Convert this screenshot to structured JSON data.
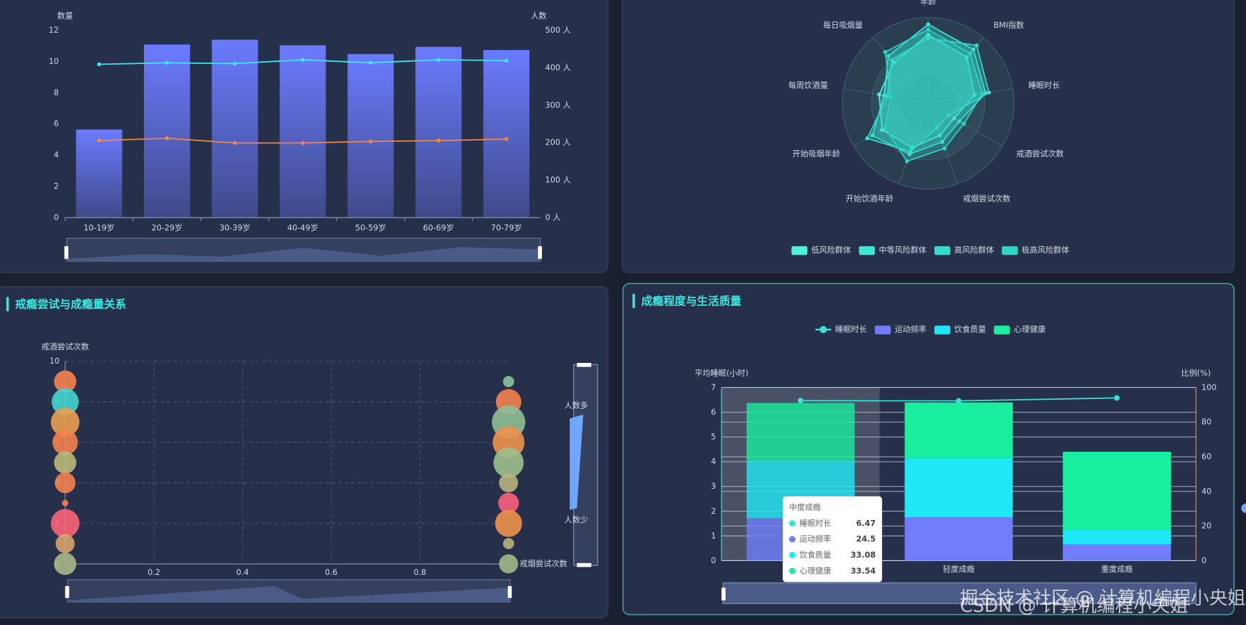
{
  "chart_data": [
    {
      "type": "bar",
      "y_label": "数量",
      "y2_label": "人数",
      "categories": [
        "10-19岁",
        "20-29岁",
        "30-39岁",
        "40-49岁",
        "50-59岁",
        "60-69岁",
        "70-79岁"
      ],
      "values": [
        5.64,
        11.08,
        11.39,
        11.03,
        10.47,
        10.93,
        10.73
      ],
      "color": "#6b7bff",
      "series": [
        {
          "color": "#38e8f0",
          "axis": "y2",
          "values": [
            409,
            413,
            411,
            421,
            413,
            421,
            419
          ]
        },
        {
          "color": "#f08a3c",
          "values": [
            4.93,
            5.08,
            4.78,
            4.78,
            4.88,
            4.93,
            5.03
          ]
        }
      ],
      "ylim": [
        0,
        12
      ],
      "yticks": [
        0,
        2,
        4,
        6,
        8,
        10,
        12
      ],
      "y2lim": [
        0,
        500
      ],
      "y2ticks": [
        {
          "value": 0,
          "label": "0 人"
        },
        {
          "value": 100,
          "label": "100 人"
        },
        {
          "value": 200,
          "label": "200 人"
        },
        {
          "value": 300,
          "label": "300 人"
        },
        {
          "value": 400,
          "label": "400 人"
        },
        {
          "value": 500,
          "label": "500 人"
        }
      ],
      "grid": false
    },
    {
      "type": "radar",
      "indicators": [
        "年龄",
        "BMI指数",
        "睡眠时长",
        "戒酒尝试次数",
        "戒烟尝试次数",
        "开始饮酒年龄",
        "开始吸烟年龄",
        "每周饮酒量",
        "每日吸烟量"
      ],
      "rlim": [
        0,
        100
      ],
      "series": [
        {
          "name": "低风险群体",
          "color": "#4ff0e0",
          "values": [
            80,
            70,
            55,
            35,
            40,
            55,
            62,
            58,
            62
          ]
        },
        {
          "name": "中等风险群体",
          "color": "#3ee6d6",
          "values": [
            92,
            82,
            68,
            42,
            48,
            63,
            75,
            52,
            72
          ]
        },
        {
          "name": "高风险群体",
          "color": "#35dccc",
          "values": [
            76,
            88,
            72,
            28,
            30,
            60,
            82,
            48,
            66
          ]
        },
        {
          "name": "极高风险群体",
          "color": "#2fd3c4",
          "values": [
            86,
            76,
            64,
            48,
            56,
            72,
            58,
            44,
            78
          ]
        }
      ]
    },
    {
      "type": "scatter",
      "title": "戒瘾尝试与成瘾量关系",
      "y_label": "戒酒尝试次数",
      "x_label": "戒烟尝试次数",
      "x": [
        0,
        0,
        0,
        0,
        0,
        0,
        0,
        0,
        0,
        0,
        1,
        1,
        1,
        1,
        1,
        1,
        1,
        1,
        1,
        1
      ],
      "y": [
        9,
        8,
        7,
        6,
        5,
        4,
        3,
        2,
        1,
        0,
        9,
        8,
        7,
        6,
        5,
        4,
        3,
        2,
        1,
        0
      ],
      "sizes": [
        14,
        17,
        18,
        16,
        14,
        13,
        4,
        18,
        12,
        14,
        7,
        16,
        21,
        20,
        19,
        12,
        13,
        17,
        7,
        12
      ],
      "colors": [
        "#f5834f",
        "#44d6d0",
        "#e8a04e",
        "#f5834f",
        "#b9b97a",
        "#f5834f",
        "#f5834f",
        "#fb6478",
        "#d7a56a",
        "#a8b888",
        "#8bc79a",
        "#f5834f",
        "#8fbf93",
        "#f0924d",
        "#9dc08d",
        "#b8b37c",
        "#fb5f7a",
        "#f0924d",
        "#b9b37a",
        "#a3b889"
      ],
      "xlim": [
        0,
        1
      ],
      "xticks": [
        0.2,
        0.4,
        0.6,
        0.8
      ],
      "ylim": [
        0,
        10
      ],
      "yticks": [
        0,
        2,
        4,
        6,
        8,
        10
      ],
      "grid": true,
      "visual_map_labels": [
        "人数多",
        "人数少"
      ]
    },
    {
      "type": "bar",
      "title": "成瘾程度与生活质量",
      "y_label": "平均睡眠(小时)",
      "y2_label": "比例(%)",
      "categories": [
        "中度成瘾",
        "轻度成瘾",
        "重度成瘾"
      ],
      "series": [
        {
          "name": "睡眠时长",
          "type": "line",
          "color": "#3de0d8",
          "values": [
            6.47,
            6.46,
            6.58
          ]
        },
        {
          "name": "运动频率",
          "type": "bar",
          "axis": "y2",
          "color": "#6f7dfa",
          "values": [
            24.5,
            25.0,
            9.3
          ]
        },
        {
          "name": "饮食质量",
          "type": "bar",
          "axis": "y2",
          "color": "#1ee8f5",
          "values": [
            33.08,
            34.3,
            8.6
          ]
        },
        {
          "name": "心理健康",
          "type": "bar",
          "axis": "y2",
          "color": "#19ee9e",
          "values": [
            33.54,
            32.1,
            45.0
          ]
        }
      ],
      "stacked": true,
      "ylim": [
        0,
        7
      ],
      "yticks": [
        0,
        1,
        2,
        3,
        4,
        5,
        6,
        7
      ],
      "y2lim": [
        0,
        100
      ],
      "y2ticks": [
        0,
        20,
        40,
        60,
        80,
        100
      ],
      "grid": true,
      "tooltip_category": 0
    }
  ],
  "watermarks": [
    "掘金技术社区 @ 计算机编程小央姐",
    "CSDN @ 计算机编程小央姐"
  ]
}
